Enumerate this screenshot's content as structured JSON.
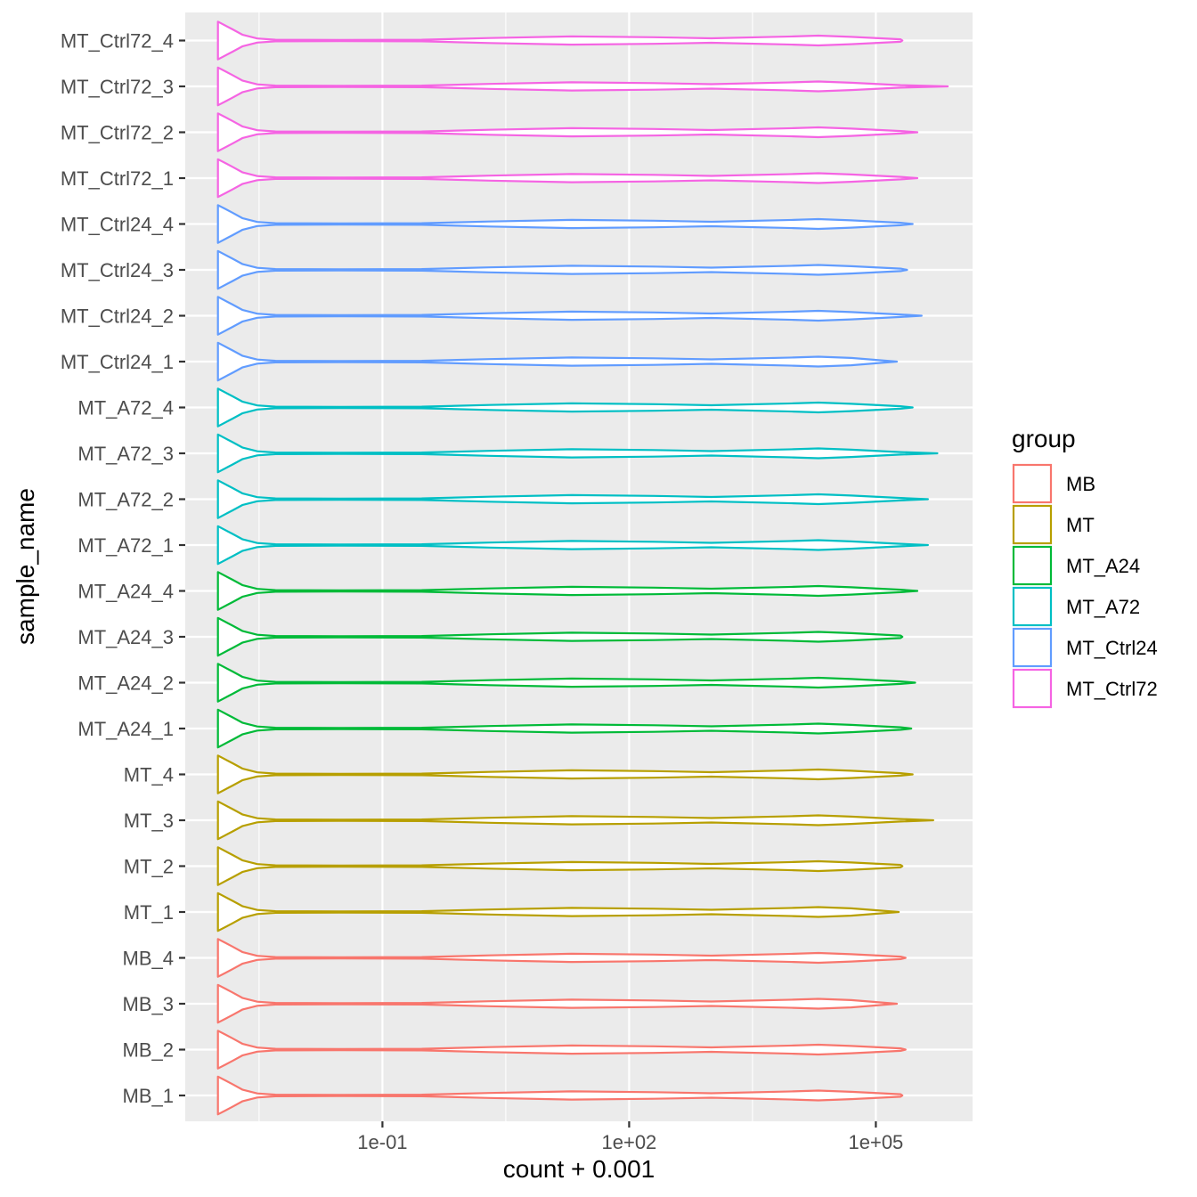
{
  "chart_data": {
    "type": "violin",
    "orientation": "horizontal",
    "xlabel": "count + 0.001",
    "ylabel": "sample_name",
    "x_scale": "log10",
    "xlim": [
      0.0004,
      1500000
    ],
    "x_ticks": [
      {
        "value": 0.1,
        "label": "1e-01"
      },
      {
        "value": 100,
        "label": "1e+02"
      },
      {
        "value": 100000,
        "label": "1e+05"
      }
    ],
    "grid": true,
    "legend": {
      "title": "group",
      "placement": "right",
      "entries": [
        {
          "name": "MB",
          "color": "#F8766D"
        },
        {
          "name": "MT",
          "color": "#B79F00"
        },
        {
          "name": "MT_A24",
          "color": "#00BA38"
        },
        {
          "name": "MT_A72",
          "color": "#00BFC4"
        },
        {
          "name": "MT_Ctrl24",
          "color": "#619CFF"
        },
        {
          "name": "MT_Ctrl72",
          "color": "#F564E3"
        }
      ]
    },
    "samples": [
      {
        "name": "MB_1",
        "group": "MB",
        "max": 210000
      },
      {
        "name": "MB_2",
        "group": "MB",
        "max": 230000
      },
      {
        "name": "MB_3",
        "group": "MB",
        "max": 180000
      },
      {
        "name": "MB_4",
        "group": "MB",
        "max": 230000
      },
      {
        "name": "MT_1",
        "group": "MT",
        "max": 190000
      },
      {
        "name": "MT_2",
        "group": "MT",
        "max": 210000
      },
      {
        "name": "MT_3",
        "group": "MT",
        "max": 500000
      },
      {
        "name": "MT_4",
        "group": "MT",
        "max": 280000
      },
      {
        "name": "MT_A24_1",
        "group": "MT_A24",
        "max": 270000
      },
      {
        "name": "MT_A24_2",
        "group": "MT_A24",
        "max": 300000
      },
      {
        "name": "MT_A24_3",
        "group": "MT_A24",
        "max": 210000
      },
      {
        "name": "MT_A24_4",
        "group": "MT_A24",
        "max": 320000
      },
      {
        "name": "MT_A72_1",
        "group": "MT_A72",
        "max": 430000
      },
      {
        "name": "MT_A72_2",
        "group": "MT_A72",
        "max": 430000
      },
      {
        "name": "MT_A72_3",
        "group": "MT_A72",
        "max": 560000
      },
      {
        "name": "MT_A72_4",
        "group": "MT_A72",
        "max": 280000
      },
      {
        "name": "MT_Ctrl24_1",
        "group": "MT_Ctrl24",
        "max": 180000
      },
      {
        "name": "MT_Ctrl24_2",
        "group": "MT_Ctrl24",
        "max": 360000
      },
      {
        "name": "MT_Ctrl24_3",
        "group": "MT_Ctrl24",
        "max": 240000
      },
      {
        "name": "MT_Ctrl24_4",
        "group": "MT_Ctrl24",
        "max": 280000
      },
      {
        "name": "MT_Ctrl72_1",
        "group": "MT_Ctrl72",
        "max": 320000
      },
      {
        "name": "MT_Ctrl72_2",
        "group": "MT_Ctrl72",
        "max": 320000
      },
      {
        "name": "MT_Ctrl72_3",
        "group": "MT_Ctrl72",
        "max": 750000
      },
      {
        "name": "MT_Ctrl72_4",
        "group": "MT_Ctrl72",
        "max": 210000
      }
    ],
    "shared_density": {
      "min_value": 0.001,
      "profile": [
        [
          0.001,
          0.92
        ],
        [
          0.0015,
          0.55
        ],
        [
          0.002,
          0.28
        ],
        [
          0.003,
          0.1
        ],
        [
          0.005,
          0.04
        ],
        [
          0.03,
          0.03
        ],
        [
          0.3,
          0.04
        ],
        [
          2,
          0.12
        ],
        [
          20,
          0.2
        ],
        [
          200,
          0.16
        ],
        [
          1000,
          0.11
        ],
        [
          10000,
          0.2
        ],
        [
          20000,
          0.24
        ],
        [
          50000,
          0.18
        ],
        [
          200000,
          0.06
        ]
      ]
    }
  }
}
